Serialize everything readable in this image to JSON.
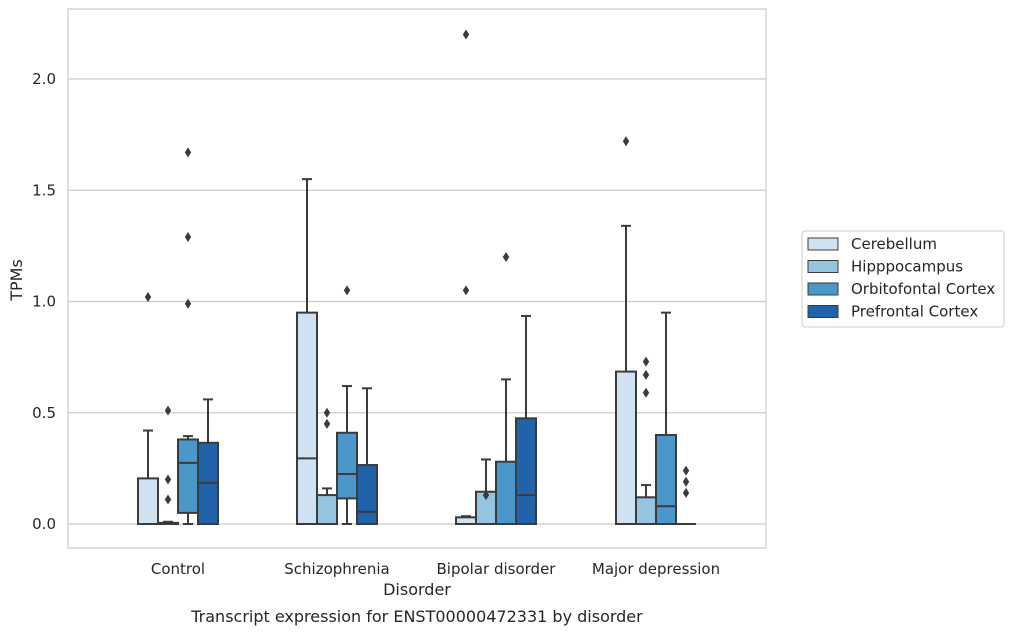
{
  "chart_data": {
    "type": "box",
    "title": "",
    "caption": "Transcript expression for ENST00000472331 by disorder",
    "xlabel": "Disorder",
    "ylabel": "TPMs",
    "ylim": [
      -0.1,
      2.33
    ],
    "yticks": [
      0.0,
      0.5,
      1.0,
      1.5,
      2.0
    ],
    "ytick_labels": [
      "0.0",
      "0.5",
      "1.0",
      "1.5",
      "2.0"
    ],
    "grid": "horizontal",
    "legend_position": "right",
    "categories": [
      "Control",
      "Schizophrenia",
      "Bipolar disorder",
      "Major depression"
    ],
    "series": [
      {
        "name": "Cerebellum",
        "color": "#d0e1f2",
        "boxes": [
          {
            "whisker_low": 0.0,
            "q1": 0.0,
            "median": 0.0,
            "q3": 0.205,
            "whisker_high": 0.42,
            "outliers": [
              1.02
            ]
          },
          {
            "whisker_low": 0.0,
            "q1": 0.0,
            "median": 0.295,
            "q3": 0.95,
            "whisker_high": 1.55,
            "outliers": []
          },
          {
            "whisker_low": 0.0,
            "q1": 0.0,
            "median": 0.0,
            "q3": 0.03,
            "whisker_high": 0.035,
            "outliers": [
              1.05,
              2.2
            ]
          },
          {
            "whisker_low": 0.0,
            "q1": 0.0,
            "median": 0.0,
            "q3": 0.685,
            "whisker_high": 1.34,
            "outliers": [
              1.72
            ]
          }
        ]
      },
      {
        "name": "Hipppocampus",
        "color": "#94c4df",
        "boxes": [
          {
            "whisker_low": 0.0,
            "q1": 0.0,
            "median": 0.0,
            "q3": 0.005,
            "whisker_high": 0.01,
            "outliers": [
              0.11,
              0.2,
              0.51
            ]
          },
          {
            "whisker_low": 0.0,
            "q1": 0.0,
            "median": 0.0,
            "q3": 0.13,
            "whisker_high": 0.16,
            "outliers": [
              0.45,
              0.5
            ]
          },
          {
            "whisker_low": 0.0,
            "q1": 0.0,
            "median": 0.0,
            "q3": 0.145,
            "whisker_high": 0.29,
            "outliers": [
              0.13
            ]
          },
          {
            "whisker_low": 0.0,
            "q1": 0.0,
            "median": 0.0,
            "q3": 0.12,
            "whisker_high": 0.175,
            "outliers": [
              0.59,
              0.67,
              0.73
            ]
          }
        ]
      },
      {
        "name": "Orbitofontal Cortex",
        "color": "#4a98c9",
        "boxes": [
          {
            "whisker_low": 0.0,
            "q1": 0.05,
            "median": 0.275,
            "q3": 0.38,
            "whisker_high": 0.395,
            "outliers": [
              0.99,
              1.29,
              1.67
            ]
          },
          {
            "whisker_low": 0.0,
            "q1": 0.115,
            "median": 0.225,
            "q3": 0.41,
            "whisker_high": 0.62,
            "outliers": [
              1.05
            ]
          },
          {
            "whisker_low": 0.0,
            "q1": 0.0,
            "median": 0.0,
            "q3": 0.28,
            "whisker_high": 0.65,
            "outliers": [
              1.2
            ]
          },
          {
            "whisker_low": 0.0,
            "q1": 0.0,
            "median": 0.08,
            "q3": 0.4,
            "whisker_high": 0.95,
            "outliers": []
          }
        ]
      },
      {
        "name": "Prefrontal Cortex",
        "color": "#2163aa",
        "boxes": [
          {
            "whisker_low": 0.0,
            "q1": 0.0,
            "median": 0.185,
            "q3": 0.365,
            "whisker_high": 0.56,
            "outliers": []
          },
          {
            "whisker_low": 0.0,
            "q1": 0.0,
            "median": 0.055,
            "q3": 0.265,
            "whisker_high": 0.61,
            "outliers": []
          },
          {
            "whisker_low": 0.0,
            "q1": 0.0,
            "median": 0.13,
            "q3": 0.475,
            "whisker_high": 0.935,
            "outliers": []
          },
          {
            "whisker_low": 0.0,
            "q1": 0.0,
            "median": 0.0,
            "q3": 0.0,
            "whisker_high": 0.0,
            "outliers": [
              0.14,
              0.19,
              0.24
            ]
          }
        ]
      }
    ]
  }
}
